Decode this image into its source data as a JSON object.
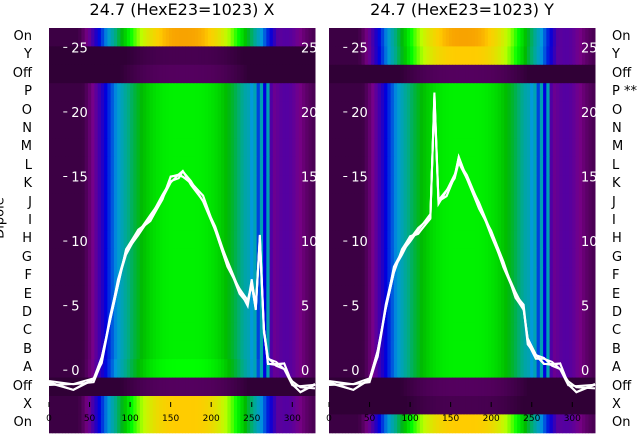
{
  "chart_data": [
    {
      "type": "heatmap",
      "title": "24.7 (HexE23=1023) X",
      "ylabel": "Dipole",
      "row_labels": [
        "On",
        "Y",
        "Off",
        "P",
        "O",
        "N",
        "M",
        "L",
        "K",
        "J",
        "I",
        "H",
        "G",
        "F",
        "E",
        "D",
        "C",
        "B",
        "A",
        "Off",
        "X",
        "On"
      ],
      "row_peak_intensity": [
        0.82,
        0.06,
        0.07,
        0.58,
        0.58,
        0.58,
        0.58,
        0.58,
        0.58,
        0.58,
        0.58,
        0.58,
        0.58,
        0.58,
        0.58,
        0.58,
        0.58,
        0.58,
        0.6,
        0.07,
        0.8,
        0.8
      ],
      "xticks": [
        0,
        50,
        100,
        150,
        200,
        250,
        300
      ],
      "xlim": [
        0,
        328
      ],
      "overlay_yticks": [
        0,
        5,
        10,
        15,
        20,
        25
      ],
      "overlay_ylim": [
        -2,
        26.5
      ],
      "overlay_profile": {
        "x": [
          0,
          30,
          55,
          65,
          75,
          85,
          95,
          110,
          125,
          140,
          150,
          160,
          165,
          175,
          190,
          205,
          220,
          235,
          245,
          250,
          255,
          260,
          265,
          270,
          280,
          290,
          300,
          310,
          328
        ],
        "y": [
          -1,
          -1,
          -0.8,
          0.5,
          4,
          7,
          9,
          10.5,
          12,
          13.5,
          14.5,
          15,
          15.5,
          14.5,
          13,
          11,
          8.5,
          6,
          5,
          7,
          5,
          10,
          3,
          1,
          0.5,
          0,
          -1,
          -1.2,
          -1.3
        ]
      }
    },
    {
      "type": "heatmap",
      "title": "24.7 (HexE23=1023) Y",
      "row_labels": [
        "On",
        "Y",
        "Off",
        "P **",
        "O",
        "N",
        "M",
        "L",
        "K",
        "J",
        "I",
        "H",
        "G",
        "F",
        "E",
        "D",
        "C",
        "B",
        "A",
        "Off",
        "X",
        "On"
      ],
      "row_peak_intensity": [
        0.82,
        0.8,
        0.07,
        0.58,
        0.58,
        0.58,
        0.58,
        0.58,
        0.58,
        0.58,
        0.58,
        0.58,
        0.58,
        0.58,
        0.58,
        0.58,
        0.58,
        0.58,
        0.58,
        0.07,
        0.06,
        0.8
      ],
      "xticks": [
        0,
        50,
        100,
        150,
        200,
        250,
        300
      ],
      "xlim": [
        0,
        328
      ],
      "overlay_yticks": [
        0,
        5,
        10,
        15,
        20,
        25
      ],
      "overlay_ylim": [
        -2,
        26.5
      ],
      "overlay_profile": {
        "x": [
          0,
          30,
          50,
          60,
          70,
          80,
          90,
          100,
          110,
          125,
          130,
          135,
          145,
          155,
          160,
          170,
          185,
          200,
          215,
          230,
          240,
          245,
          255,
          265,
          275,
          285,
          295,
          305,
          328
        ],
        "y": [
          -1,
          -1,
          -0.8,
          1,
          5,
          8,
          9,
          10,
          11,
          12,
          21,
          13,
          14,
          15,
          16,
          15,
          13,
          10.5,
          8,
          6,
          5,
          2,
          1,
          1,
          0.5,
          0,
          -1,
          -1.2,
          -1.3
        ]
      }
    }
  ]
}
